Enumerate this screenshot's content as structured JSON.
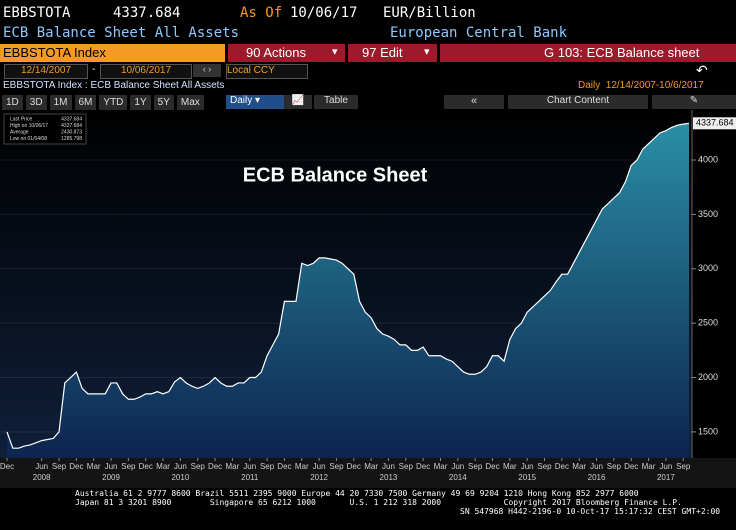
{
  "header": {
    "ticker": "EBBSTOTA",
    "price": "4337.684",
    "as_of_label": "As Of",
    "as_of_date": "10/06/17",
    "units": "EUR/Billion",
    "name": "ECB Balance Sheet All Assets",
    "source": "European Central Bank"
  },
  "toolbar": {
    "security": "EBBSTOTA Index",
    "actions": "90 Actions",
    "edit": "97 Edit",
    "function": "G 103: ECB Balance sheet",
    "start_date": "12/14/2007",
    "date_separator": "-",
    "end_date": "10/06/2017",
    "currency": "Local CCY",
    "chart_caption": "EBBSTOTA Index : ECB Balance Sheet All Assets",
    "range_info": "Daily  12/14/2007-10/6/2017",
    "periods": [
      "1D",
      "3D",
      "1M",
      "6M",
      "YTD",
      "1Y",
      "5Y",
      "Max"
    ],
    "frequency": "Daily",
    "table": "Table",
    "chart_content": "Chart Content"
  },
  "chart_data": {
    "type": "area",
    "title": "ECB Balance Sheet",
    "color": "#2a8ea5",
    "line_color": "#ffffff",
    "legend_stats": [
      {
        "label": "Last Price",
        "value": 4337.684
      },
      {
        "label": "High on 10/06/17",
        "value": 4337.684
      },
      {
        "label": "Average",
        "value": 2430.873
      },
      {
        "label": "Low on 01/04/08",
        "value": 1285.798
      }
    ],
    "x": [
      "2007-12",
      "2008-01",
      "2008-02",
      "2008-03",
      "2008-04",
      "2008-05",
      "2008-06",
      "2008-07",
      "2008-08",
      "2008-09",
      "2008-10",
      "2008-11",
      "2008-12",
      "2009-01",
      "2009-02",
      "2009-03",
      "2009-04",
      "2009-05",
      "2009-06",
      "2009-07",
      "2009-08",
      "2009-09",
      "2009-10",
      "2009-11",
      "2009-12",
      "2010-01",
      "2010-02",
      "2010-03",
      "2010-04",
      "2010-05",
      "2010-06",
      "2010-07",
      "2010-08",
      "2010-09",
      "2010-10",
      "2010-11",
      "2010-12",
      "2011-01",
      "2011-02",
      "2011-03",
      "2011-04",
      "2011-05",
      "2011-06",
      "2011-07",
      "2011-08",
      "2011-09",
      "2011-10",
      "2011-11",
      "2011-12",
      "2012-01",
      "2012-02",
      "2012-03",
      "2012-04",
      "2012-05",
      "2012-06",
      "2012-07",
      "2012-08",
      "2012-09",
      "2012-10",
      "2012-11",
      "2012-12",
      "2013-01",
      "2013-02",
      "2013-03",
      "2013-04",
      "2013-05",
      "2013-06",
      "2013-07",
      "2013-08",
      "2013-09",
      "2013-10",
      "2013-11",
      "2013-12",
      "2014-01",
      "2014-02",
      "2014-03",
      "2014-04",
      "2014-05",
      "2014-06",
      "2014-07",
      "2014-08",
      "2014-09",
      "2014-10",
      "2014-11",
      "2014-12",
      "2015-01",
      "2015-02",
      "2015-03",
      "2015-04",
      "2015-05",
      "2015-06",
      "2015-07",
      "2015-08",
      "2015-09",
      "2015-10",
      "2015-11",
      "2015-12",
      "2016-01",
      "2016-02",
      "2016-03",
      "2016-04",
      "2016-05",
      "2016-06",
      "2016-07",
      "2016-08",
      "2016-09",
      "2016-10",
      "2016-11",
      "2016-12",
      "2017-01",
      "2017-02",
      "2017-03",
      "2017-04",
      "2017-05",
      "2017-06",
      "2017-07",
      "2017-08",
      "2017-09",
      "2017-10"
    ],
    "values": [
      1500,
      1350,
      1350,
      1370,
      1380,
      1400,
      1420,
      1430,
      1440,
      1500,
      1950,
      2000,
      2050,
      1900,
      1850,
      1850,
      1850,
      1850,
      1950,
      1950,
      1850,
      1800,
      1800,
      1820,
      1850,
      1850,
      1870,
      1850,
      1870,
      1960,
      2000,
      1950,
      1920,
      1900,
      1920,
      1950,
      2000,
      1950,
      1920,
      1920,
      1950,
      1950,
      2000,
      2000,
      2050,
      2200,
      2300,
      2400,
      2700,
      2700,
      2700,
      3050,
      3030,
      3050,
      3100,
      3100,
      3090,
      3080,
      3050,
      3000,
      2950,
      2700,
      2600,
      2550,
      2450,
      2400,
      2380,
      2350,
      2300,
      2300,
      2250,
      2250,
      2280,
      2200,
      2200,
      2200,
      2170,
      2150,
      2100,
      2050,
      2030,
      2030,
      2050,
      2100,
      2200,
      2200,
      2150,
      2350,
      2450,
      2500,
      2600,
      2650,
      2700,
      2750,
      2800,
      2880,
      2950,
      2950,
      3050,
      3150,
      3250,
      3350,
      3450,
      3550,
      3600,
      3650,
      3700,
      3800,
      3950,
      4000,
      4100,
      4150,
      4200,
      4250,
      4270,
      4300,
      4320,
      4330,
      4337.684
    ],
    "xlim": [
      "2007-12",
      "2017-10"
    ],
    "ylim": [
      1260,
      4460
    ],
    "yticks": [
      1500,
      2000,
      2500,
      3000,
      3500,
      4000
    ],
    "grid": true,
    "xticks": [
      {
        "value": "2007-12",
        "label": "Dec"
      },
      {
        "value": "2008-06",
        "label": "Jun"
      },
      {
        "value": "2008-09",
        "label": "Sep"
      },
      {
        "value": "2008-12",
        "label": "Dec"
      },
      {
        "value": "2009-03",
        "label": "Mar"
      },
      {
        "value": "2009-06",
        "label": "Jun"
      },
      {
        "value": "2009-09",
        "label": "Sep"
      },
      {
        "value": "2009-12",
        "label": "Dec"
      },
      {
        "value": "2010-03",
        "label": "Mar"
      },
      {
        "value": "2010-06",
        "label": "Jun"
      },
      {
        "value": "2010-09",
        "label": "Sep"
      },
      {
        "value": "2010-12",
        "label": "Dec"
      },
      {
        "value": "2011-03",
        "label": "Mar"
      },
      {
        "value": "2011-06",
        "label": "Jun"
      },
      {
        "value": "2011-09",
        "label": "Sep"
      },
      {
        "value": "2011-12",
        "label": "Dec"
      },
      {
        "value": "2012-03",
        "label": "Mar"
      },
      {
        "value": "2012-06",
        "label": "Jun"
      },
      {
        "value": "2012-09",
        "label": "Sep"
      },
      {
        "value": "2012-12",
        "label": "Dec"
      },
      {
        "value": "2013-03",
        "label": "Mar"
      },
      {
        "value": "2013-06",
        "label": "Jun"
      },
      {
        "value": "2013-09",
        "label": "Sep"
      },
      {
        "value": "2013-12",
        "label": "Dec"
      },
      {
        "value": "2014-03",
        "label": "Mar"
      },
      {
        "value": "2014-06",
        "label": "Jun"
      },
      {
        "value": "2014-09",
        "label": "Sep"
      },
      {
        "value": "2014-12",
        "label": "Dec"
      },
      {
        "value": "2015-03",
        "label": "Mar"
      },
      {
        "value": "2015-06",
        "label": "Jun"
      },
      {
        "value": "2015-09",
        "label": "Sep"
      },
      {
        "value": "2015-12",
        "label": "Dec"
      },
      {
        "value": "2016-03",
        "label": "Mar"
      },
      {
        "value": "2016-06",
        "label": "Jun"
      },
      {
        "value": "2016-09",
        "label": "Sep"
      },
      {
        "value": "2016-12",
        "label": "Dec"
      },
      {
        "value": "2017-03",
        "label": "Mar"
      },
      {
        "value": "2017-06",
        "label": "Jun"
      },
      {
        "value": "2017-09",
        "label": "Sep"
      }
    ],
    "year_labels": [
      {
        "value": "2008-06",
        "label": "2008"
      },
      {
        "value": "2009-06",
        "label": "2009"
      },
      {
        "value": "2010-06",
        "label": "2010"
      },
      {
        "value": "2011-06",
        "label": "2011"
      },
      {
        "value": "2012-06",
        "label": "2012"
      },
      {
        "value": "2013-06",
        "label": "2013"
      },
      {
        "value": "2014-06",
        "label": "2014"
      },
      {
        "value": "2015-06",
        "label": "2015"
      },
      {
        "value": "2016-06",
        "label": "2016"
      },
      {
        "value": "2017-06",
        "label": "2017"
      }
    ]
  },
  "footer": {
    "lines": [
      "Australia 61 2 9777 8600 Brazil 5511 2395 9000 Europe 44 20 7330 7500 Germany 49 69 9204 1210 Hong Kong 852 2977 6000",
      "Japan 81 3 3201 8900        Singapore 65 6212 1000       U.S. 1 212 318 2000             Copyright 2017 Bloomberg Finance L.P.",
      "SN 547968 H442-2196-0 10-Oct-17 15:17:32 CEST GMT+2:00"
    ]
  }
}
